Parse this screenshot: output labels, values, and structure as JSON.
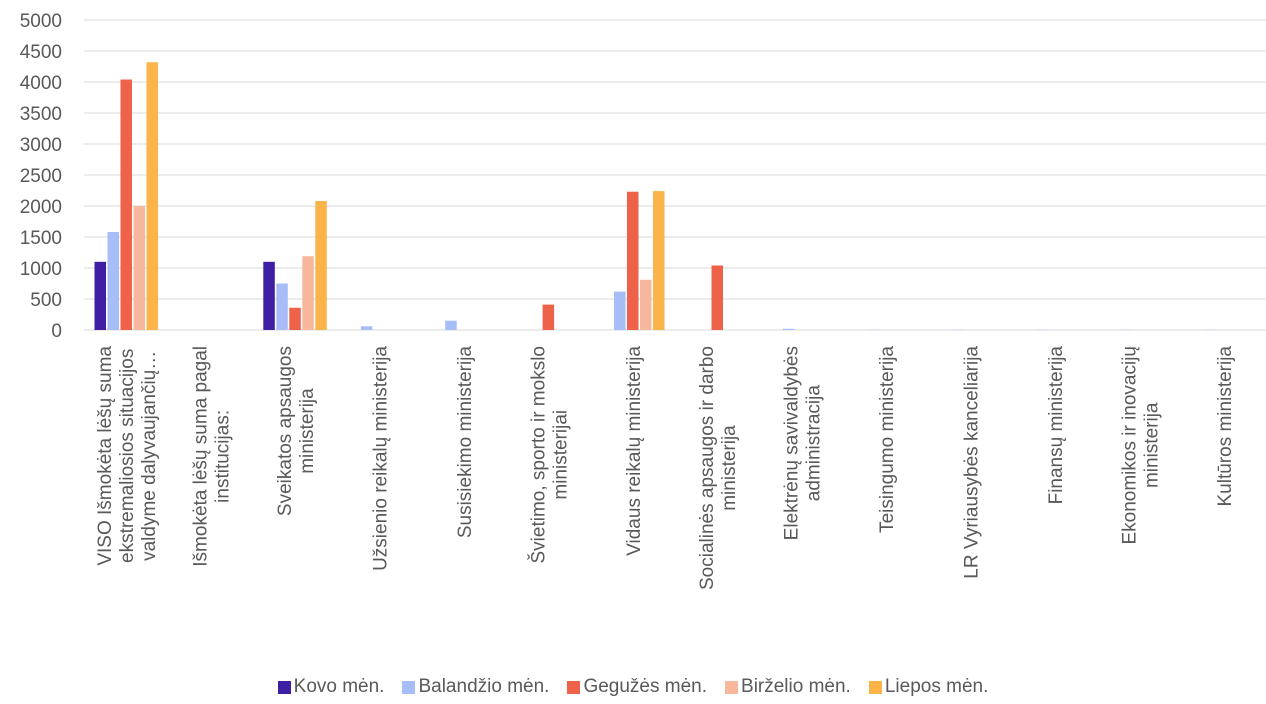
{
  "chart_data": {
    "type": "bar",
    "title": "",
    "xlabel": "",
    "ylabel": "",
    "ylim": [
      0,
      5000
    ],
    "yticks": [
      0,
      500,
      1000,
      1500,
      2000,
      2500,
      3000,
      3500,
      4000,
      4500,
      5000
    ],
    "grid": true,
    "legend_position": "bottom",
    "categories": [
      [
        "VISO Išmokėta lėšų suma",
        "ekstremaliosios situacijos",
        "valdyme dalyvaujančių…"
      ],
      [
        "Išmokėta lėšų suma pagal",
        "institucijas:"
      ],
      [
        "Sveikatos apsaugos",
        "ministerija"
      ],
      [
        "Užsienio reikalų ministerija"
      ],
      [
        "Susisiekimo ministerija"
      ],
      [
        "Švietimo, sporto ir mokslo",
        "ministerijai"
      ],
      [
        "Vidaus reikalų ministerija"
      ],
      [
        "Socialinės apsaugos ir darbo",
        "ministerija"
      ],
      [
        "Elektrėnų savivaldybės",
        "administracija"
      ],
      [
        "Teisingumo ministerija"
      ],
      [
        "LR Vyriausybės kanceliarija"
      ],
      [
        "Finansų ministerija"
      ],
      [
        "Ekonomikos ir inovacijų",
        "ministerija"
      ],
      [
        "Kultūros ministerija"
      ]
    ],
    "series": [
      {
        "name": "Kovo mėn.",
        "color": "#3e1fa3",
        "values": [
          1100,
          0,
          1100,
          0,
          0,
          0,
          0,
          0,
          0,
          0,
          0,
          0,
          0,
          0
        ]
      },
      {
        "name": "Balandžio mėn.",
        "color": "#a6bdf7",
        "values": [
          1580,
          0,
          750,
          60,
          150,
          0,
          620,
          0,
          20,
          5,
          5,
          5,
          5,
          5
        ]
      },
      {
        "name": "Gegužės mėn.",
        "color": "#ed6248",
        "values": [
          4040,
          0,
          360,
          0,
          0,
          410,
          2230,
          1040,
          0,
          0,
          0,
          0,
          0,
          0
        ]
      },
      {
        "name": "Birželio mėn.",
        "color": "#f7b79c",
        "values": [
          2000,
          0,
          1190,
          0,
          0,
          0,
          810,
          0,
          0,
          0,
          0,
          0,
          0,
          0
        ]
      },
      {
        "name": "Liepos mėn.",
        "color": "#fbb44a",
        "values": [
          4320,
          0,
          2080,
          0,
          0,
          0,
          2240,
          0,
          0,
          0,
          0,
          0,
          0,
          0
        ]
      }
    ]
  }
}
